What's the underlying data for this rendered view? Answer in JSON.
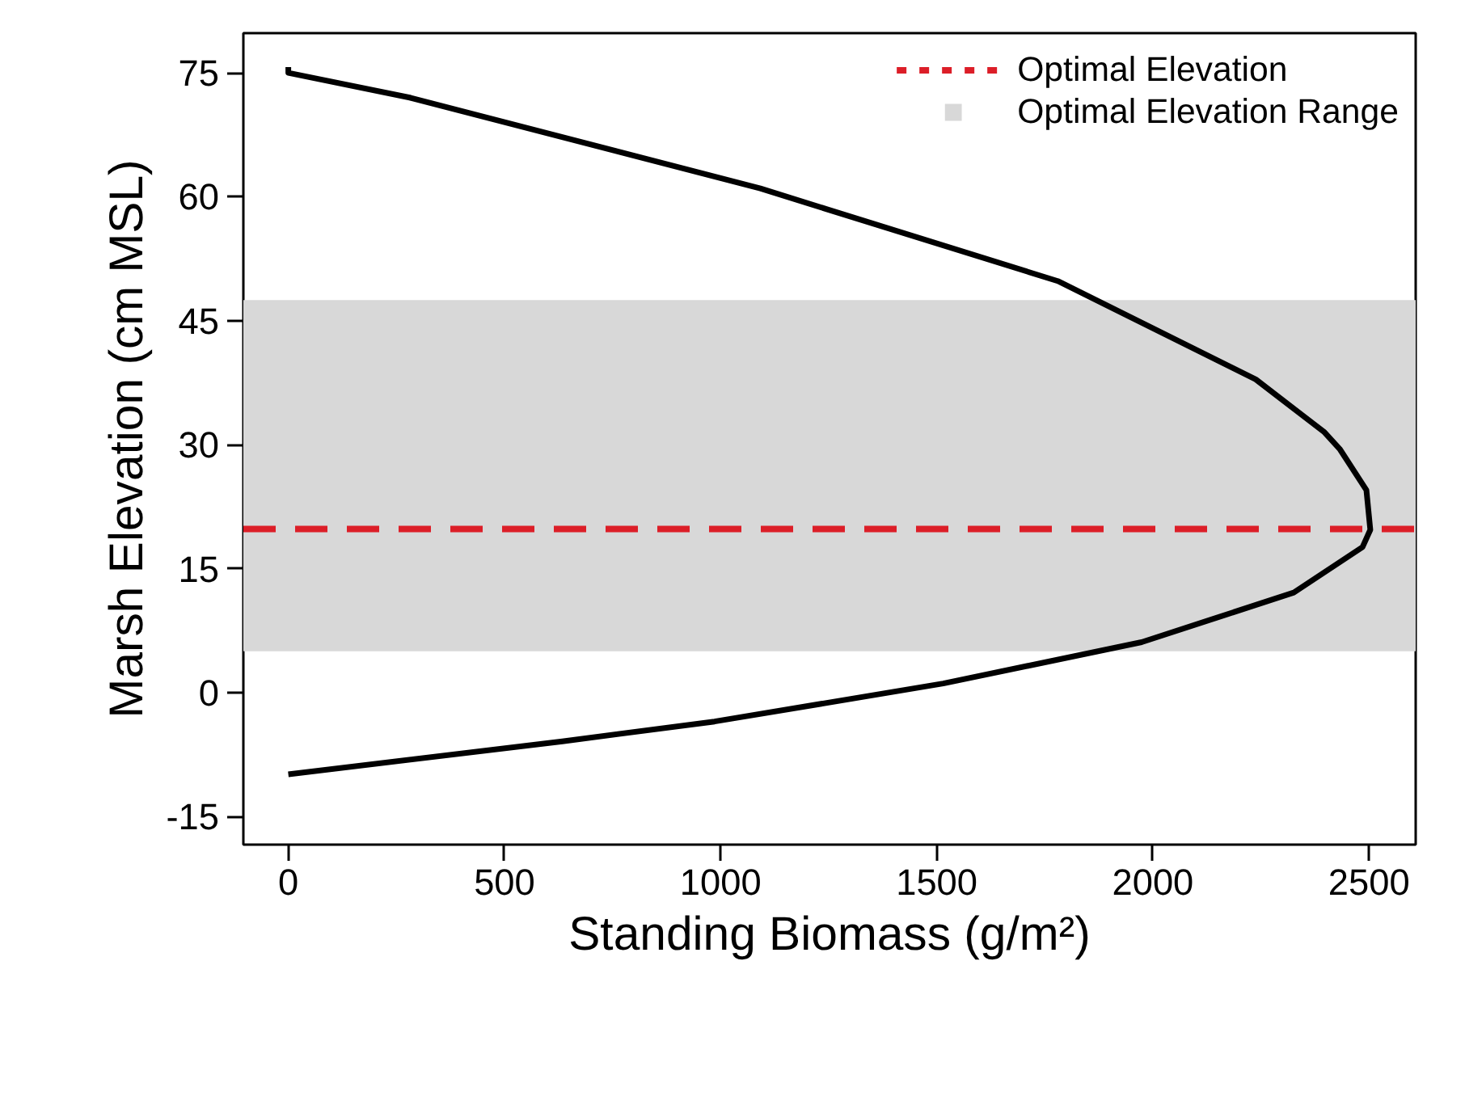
{
  "chart_data": {
    "type": "line",
    "xlabel": "Standing Biomass (g/m²)",
    "ylabel": "Marsh Elevation (cm MSL)",
    "series": [
      {
        "color": "#000000",
        "x": [
          0,
          0,
          281,
          1092,
          1780,
          2238,
          2397,
          2432,
          2494,
          2503,
          2485,
          2326,
          1974,
          1515,
          986,
          634,
          0
        ],
        "values": [
          75.7,
          75,
          72,
          61,
          49.8,
          37.9,
          31.5,
          29.5,
          24.5,
          19.7,
          17.6,
          12.1,
          6.1,
          1.1,
          -3.5,
          -5.9,
          -9.9
        ]
      }
    ],
    "xlim": [
      -104,
      2608
    ],
    "ylim": [
      -18.4,
      79.8
    ],
    "xticks": [
      0,
      500,
      1000,
      1500,
      2000,
      2500
    ],
    "yticks": [
      -15,
      0,
      15,
      30,
      45,
      60,
      75
    ],
    "ref_lines": [
      {
        "axis": "y",
        "value": 19.8,
        "label": "Optimal Elevation",
        "color": "#dc1e28",
        "line_style": "dashed"
      }
    ],
    "bands": [
      {
        "axis": "y",
        "from": 5,
        "to": 47.5,
        "label": "Optimal Elevation Range",
        "color": "#d8d8d8"
      }
    ],
    "grid": false,
    "legend": "top right",
    "marker": "none",
    "line_style": "solid"
  }
}
